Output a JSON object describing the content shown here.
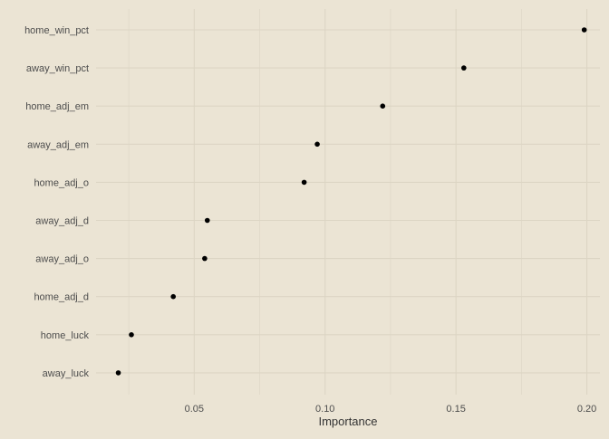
{
  "colors": {
    "background": "#ebe4d4",
    "grid": "#dcd5c4",
    "point": "#000000",
    "text": "#4d4d4d",
    "title": "#333333"
  },
  "chart_data": {
    "type": "scatter",
    "style": "dot-plot",
    "title": "",
    "xlabel": "Importance",
    "ylabel": "",
    "grid": true,
    "legend": "none",
    "xlim": [
      0.0125,
      0.205
    ],
    "x_ticks": [
      0.05,
      0.1,
      0.15,
      0.2
    ],
    "x_tick_labels": [
      "0.05",
      "0.10",
      "0.15",
      "0.20"
    ],
    "categories": [
      "home_win_pct",
      "away_win_pct",
      "home_adj_em",
      "away_adj_em",
      "home_adj_o",
      "away_adj_d",
      "away_adj_o",
      "home_adj_d",
      "home_luck",
      "away_luck"
    ],
    "values": [
      0.199,
      0.153,
      0.122,
      0.097,
      0.092,
      0.055,
      0.054,
      0.042,
      0.026,
      0.021
    ]
  }
}
